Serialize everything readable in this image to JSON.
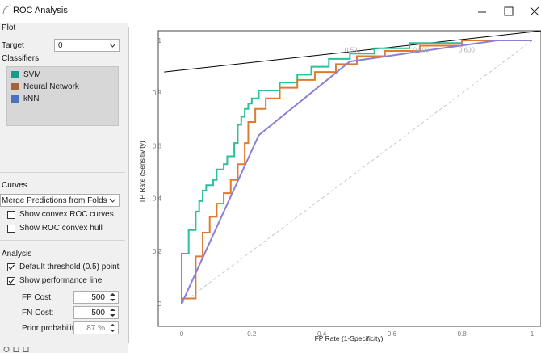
{
  "window": {
    "title": "ROC Analysis",
    "controls": [
      "minimize",
      "maximize",
      "close"
    ]
  },
  "plot_section": {
    "label": "Plot",
    "target_label": "Target",
    "target_value": "0",
    "classifiers_label": "Classifiers",
    "classifiers": [
      {
        "label": "SVM",
        "color": "#1a9a8f"
      },
      {
        "label": "Neural Network",
        "color": "#a0653a"
      },
      {
        "label": "kNN",
        "color": "#4a70c0"
      }
    ]
  },
  "curves_section": {
    "label": "Curves",
    "merge_option": "Merge Predictions from Folds",
    "show_convex_curves": "Show convex ROC curves",
    "show_convex_hull": "Show ROC convex hull"
  },
  "analysis_section": {
    "label": "Analysis",
    "default_threshold": "Default threshold (0.5) point",
    "show_performance_line": "Show performance line",
    "fp_cost_label": "FP Cost:",
    "fp_cost_value": "500",
    "fn_cost_label": "FN Cost:",
    "fn_cost_value": "500",
    "prior_label": "Prior probability:",
    "prior_value": "87 %"
  },
  "chart_data": {
    "type": "line",
    "xlabel": "FP Rate (1-Specificity)",
    "ylabel": "TP Rate (Sensitivity)",
    "xlim": [
      0,
      1
    ],
    "ylim": [
      0,
      1
    ],
    "x_ticks": [
      "0",
      "0.2",
      "0.4",
      "0.6",
      "0.8",
      "1"
    ],
    "y_ticks": [
      "0",
      "0.2",
      "0.4",
      "0.6",
      "0.8",
      "1"
    ],
    "annotations": [
      "0.501",
      "0.600",
      "0.600"
    ],
    "series": [
      {
        "color": "#2bbf9a",
        "style": "step",
        "x": [
          0,
          0,
          0.02,
          0.02,
          0.04,
          0.04,
          0.05,
          0.05,
          0.06,
          0.06,
          0.07,
          0.07,
          0.09,
          0.09,
          0.1,
          0.1,
          0.12,
          0.12,
          0.13,
          0.13,
          0.15,
          0.15,
          0.16,
          0.16,
          0.17,
          0.17,
          0.18,
          0.18,
          0.19,
          0.19,
          0.2,
          0.2,
          0.22,
          0.22,
          0.28,
          0.28,
          0.33,
          0.33,
          0.37,
          0.37,
          0.42,
          0.42,
          0.48,
          0.48,
          0.55,
          0.55,
          0.65,
          0.65,
          0.8,
          0.8,
          1
        ],
        "y": [
          0,
          0.19,
          0.19,
          0.28,
          0.28,
          0.35,
          0.35,
          0.39,
          0.39,
          0.43,
          0.43,
          0.45,
          0.45,
          0.47,
          0.47,
          0.51,
          0.51,
          0.53,
          0.53,
          0.56,
          0.56,
          0.61,
          0.61,
          0.68,
          0.68,
          0.71,
          0.71,
          0.74,
          0.74,
          0.76,
          0.76,
          0.78,
          0.78,
          0.81,
          0.81,
          0.84,
          0.84,
          0.87,
          0.87,
          0.9,
          0.9,
          0.93,
          0.93,
          0.95,
          0.95,
          0.97,
          0.97,
          0.99,
          0.99,
          1,
          1
        ]
      },
      {
        "color": "#e07a2e",
        "style": "step",
        "x": [
          0,
          0,
          0.04,
          0.04,
          0.06,
          0.06,
          0.08,
          0.08,
          0.1,
          0.1,
          0.12,
          0.12,
          0.14,
          0.14,
          0.16,
          0.16,
          0.18,
          0.18,
          0.19,
          0.19,
          0.21,
          0.21,
          0.24,
          0.24,
          0.28,
          0.28,
          0.33,
          0.33,
          0.38,
          0.38,
          0.44,
          0.44,
          0.5,
          0.5,
          0.58,
          0.58,
          0.68,
          0.68,
          0.8,
          0.8,
          1
        ],
        "y": [
          0,
          0.02,
          0.02,
          0.18,
          0.18,
          0.27,
          0.27,
          0.33,
          0.33,
          0.38,
          0.38,
          0.42,
          0.42,
          0.47,
          0.47,
          0.53,
          0.53,
          0.61,
          0.61,
          0.69,
          0.69,
          0.74,
          0.74,
          0.78,
          0.78,
          0.82,
          0.82,
          0.85,
          0.85,
          0.88,
          0.88,
          0.91,
          0.91,
          0.94,
          0.94,
          0.96,
          0.96,
          0.98,
          0.98,
          1,
          1
        ]
      },
      {
        "color": "#8a7fd6",
        "style": "line",
        "x": [
          0,
          0.22,
          0.48,
          0.9,
          1
        ],
        "y": [
          0,
          0.64,
          0.92,
          1,
          1
        ]
      }
    ],
    "reference_diagonal": {
      "color": "#c8c8c8",
      "style": "dashed"
    },
    "performance_line": {
      "color": "#000000",
      "x": [
        -0.05,
        1.05
      ],
      "y": [
        0.88,
        1.04
      ]
    }
  }
}
